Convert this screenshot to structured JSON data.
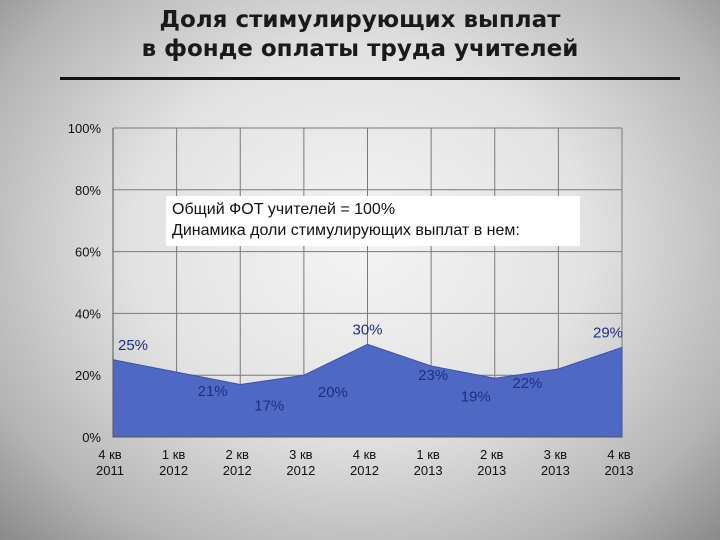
{
  "title": {
    "line1": "Доля стимулирующих выплат",
    "line2": "в фонде оплаты труда учителей"
  },
  "note": {
    "line1": "Общий ФОТ учителей = 100%",
    "line2": "Динамика доли стимулирующих выплат в нем:"
  },
  "colors": {
    "area_fill": "#4f68c4",
    "area_stroke": "#3a52ad",
    "data_label": "#1f2f80",
    "gridline": "#7a7a7a",
    "title_text": "#1a1a1a"
  },
  "chart_data": {
    "type": "area",
    "categories": [
      [
        "4 кв",
        "2011"
      ],
      [
        "1 кв",
        "2012"
      ],
      [
        "2 кв",
        "2012"
      ],
      [
        "3 кв",
        "2012"
      ],
      [
        "4 кв",
        "2012"
      ],
      [
        "1 кв",
        "2013"
      ],
      [
        "2 кв",
        "2013"
      ],
      [
        "3 кв",
        "2013"
      ],
      [
        "4 кв",
        "2013"
      ]
    ],
    "values": [
      25,
      21,
      17,
      20,
      30,
      23,
      19,
      22,
      29
    ],
    "data_labels": [
      "25%",
      "21%",
      "17%",
      "20%",
      "30%",
      "23%",
      "19%",
      "22%",
      "29%"
    ],
    "y_ticks": [
      "0%",
      "20%",
      "40%",
      "60%",
      "80%",
      "100%"
    ],
    "ylim": [
      0,
      100
    ],
    "grid": true,
    "legend": "none"
  }
}
